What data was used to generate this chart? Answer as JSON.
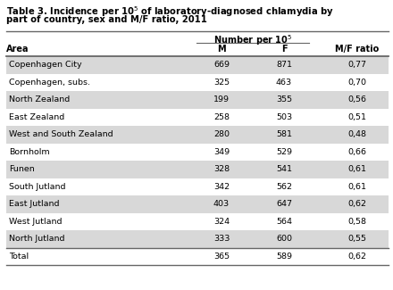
{
  "title": "Table 3. Incidence per 10$^5$ of laboratory-diagnosed chlamydia by\npart of country, sex and M/F ratio, 2011",
  "col_header_group": "Number per 10$^5$",
  "col_headers": [
    "Area",
    "M",
    "F",
    "M/F ratio"
  ],
  "rows": [
    [
      "Copenhagen City",
      "669",
      "871",
      "0,77"
    ],
    [
      "Copenhagen, subs.",
      "325",
      "463",
      "0,70"
    ],
    [
      "North Zealand",
      "199",
      "355",
      "0,56"
    ],
    [
      "East Zealand",
      "258",
      "503",
      "0,51"
    ],
    [
      "West and South Zealand",
      "280",
      "581",
      "0,48"
    ],
    [
      "Bornholm",
      "349",
      "529",
      "0,66"
    ],
    [
      "Funen",
      "328",
      "541",
      "0,61"
    ],
    [
      "South Jutland",
      "342",
      "562",
      "0,61"
    ],
    [
      "East Jutland",
      "403",
      "647",
      "0,62"
    ],
    [
      "West Jutland",
      "324",
      "564",
      "0,58"
    ],
    [
      "North Jutland",
      "333",
      "600",
      "0,55"
    ]
  ],
  "total_row": [
    "Total",
    "365",
    "589",
    "0,62"
  ],
  "shaded_rows": [
    0,
    2,
    4,
    6,
    8,
    10
  ],
  "row_bg_shaded": "#d8d8d8",
  "row_bg_white": "#ffffff",
  "text_color": "#000000",
  "line_color": "#666666",
  "title_color": "#000000",
  "fig_bg": "#ffffff"
}
